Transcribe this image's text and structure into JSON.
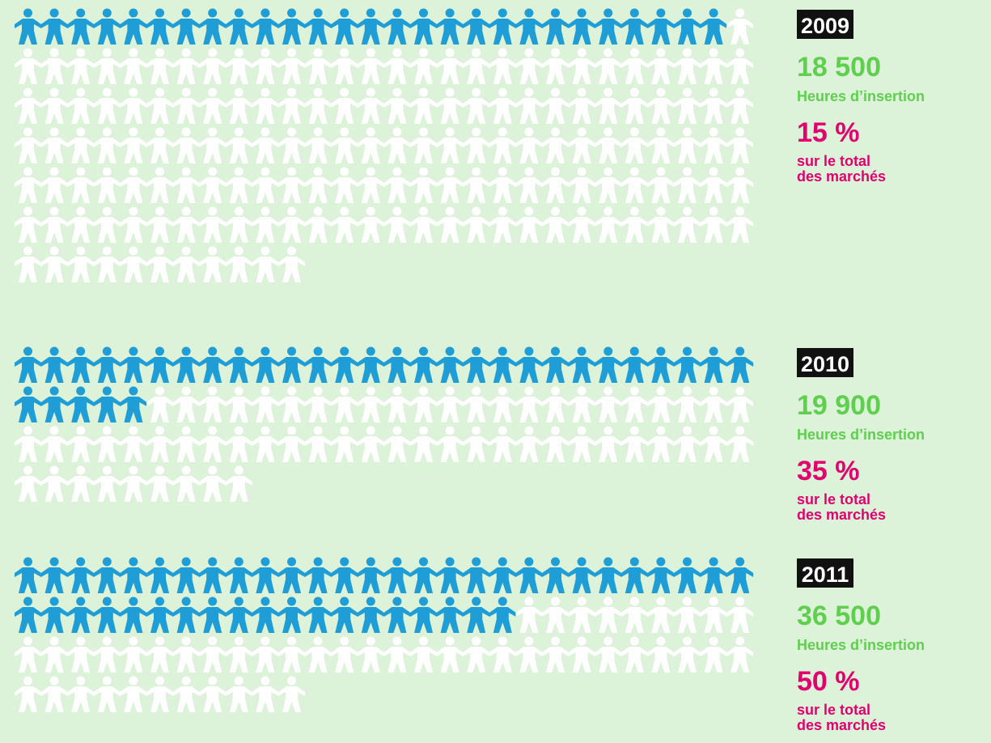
{
  "chart_data": {
    "type": "pictogram",
    "filled_color": "#1f9dd6",
    "empty_color": "#ffffff",
    "hours_color": "#5fcf4e",
    "share_color": "#e2006f",
    "columns": 28,
    "panels": [
      {
        "year": "2009",
        "hours": "18 500",
        "hours_caption": "Heures d’insertion",
        "share": "15 %",
        "share_caption": [
          "sur le total",
          "des marchés"
        ],
        "icons_filled": 27,
        "icons_total": 179
      },
      {
        "year": "2010",
        "hours": "19 900",
        "hours_caption": "Heures d’insertion",
        "share": "35 %",
        "share_caption": [
          "sur le total",
          "des marchés"
        ],
        "icons_filled": 33,
        "icons_total": 93
      },
      {
        "year": "2011",
        "hours": "36 500",
        "hours_caption": "Heures d’insertion",
        "share": "50 %",
        "share_caption": [
          "sur le total",
          "des marchés"
        ],
        "icons_filled": 47,
        "icons_total": 95
      }
    ]
  }
}
